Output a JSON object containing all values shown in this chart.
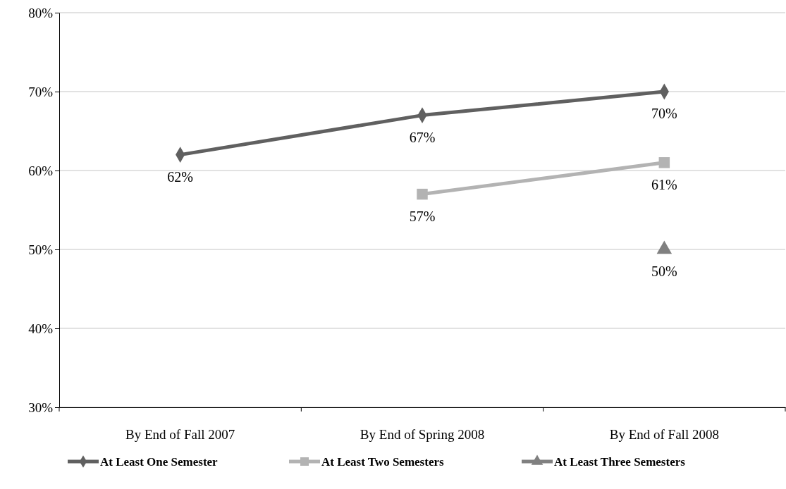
{
  "chart_data": {
    "type": "line",
    "categories": [
      "By End of Fall 2007",
      "By End of Spring 2008",
      "By End of Fall 2008"
    ],
    "series": [
      {
        "name": "At Least One Semester",
        "color": "#606060",
        "marker": "diamond",
        "values": [
          62,
          67,
          70
        ],
        "value_labels": [
          "62%",
          "67%",
          "70%"
        ]
      },
      {
        "name": "At Least Two Semesters",
        "color": "#b3b3b3",
        "marker": "square",
        "values": [
          null,
          57,
          61
        ],
        "value_labels": [
          null,
          "57%",
          "61%"
        ]
      },
      {
        "name": "At Least Three Semesters",
        "color": "#808080",
        "marker": "triangle",
        "values": [
          null,
          null,
          50
        ],
        "value_labels": [
          null,
          null,
          "50%"
        ]
      }
    ],
    "ylim": [
      30,
      80
    ],
    "yticks": [
      {
        "value": 30,
        "label": "30%"
      },
      {
        "value": 40,
        "label": "40%"
      },
      {
        "value": 50,
        "label": "50%"
      },
      {
        "value": 60,
        "label": "60%"
      },
      {
        "value": 70,
        "label": "70%"
      },
      {
        "value": 80,
        "label": "80%"
      }
    ],
    "grid": "y",
    "legend": "bottom"
  }
}
